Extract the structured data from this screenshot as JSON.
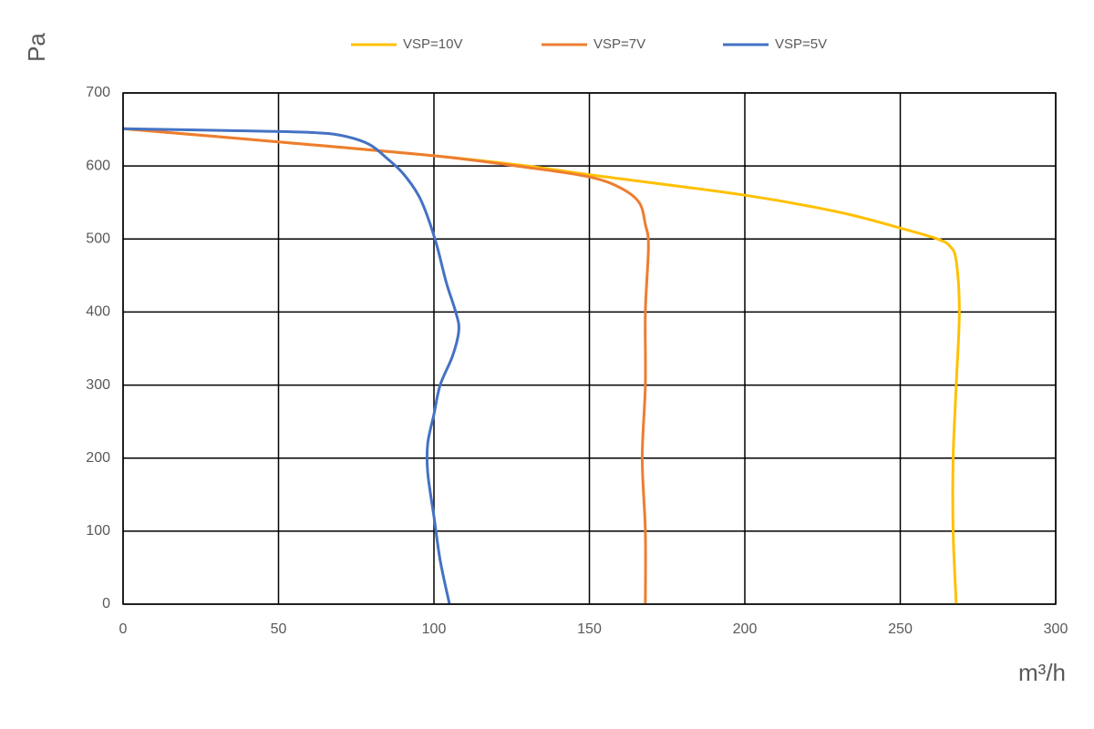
{
  "chart_data": {
    "type": "line",
    "x_label": "m³/h",
    "y_label": "Pa",
    "xlim": [
      0,
      300
    ],
    "xticks": [
      0,
      50,
      100,
      150,
      200,
      250,
      300
    ],
    "ylim": [
      0,
      700
    ],
    "yticks": [
      0,
      100,
      200,
      300,
      400,
      500,
      600,
      700
    ],
    "grid": true,
    "legend": "top",
    "series": [
      {
        "name": "VSP=10V",
        "color": "#ffc000",
        "x": [
          0,
          50,
          100,
          130,
          150,
          200,
          230,
          250,
          262,
          266,
          268,
          269,
          268,
          267,
          267,
          268
        ],
        "values": [
          651,
          633,
          614,
          600,
          588,
          560,
          537,
          515,
          500,
          490,
          470,
          400,
          300,
          200,
          100,
          0
        ]
      },
      {
        "name": "VSP=7V",
        "color": "#ed7d31",
        "x": [
          0,
          50,
          100,
          130,
          150,
          160,
          166,
          168,
          169,
          168,
          168,
          167,
          168,
          168
        ],
        "values": [
          651,
          633,
          614,
          598,
          585,
          570,
          550,
          520,
          490,
          400,
          300,
          200,
          100,
          0
        ]
      },
      {
        "name": "VSP=5V",
        "color": "#4472c4",
        "x": [
          0,
          40,
          60,
          70,
          79,
          85,
          90,
          95,
          98,
          101,
          104,
          107,
          108,
          106,
          102,
          100,
          98,
          98,
          100,
          102,
          105
        ],
        "values": [
          651,
          648,
          646,
          642,
          630,
          610,
          590,
          560,
          530,
          490,
          440,
          400,
          375,
          340,
          300,
          260,
          220,
          180,
          120,
          60,
          0
        ]
      }
    ]
  }
}
